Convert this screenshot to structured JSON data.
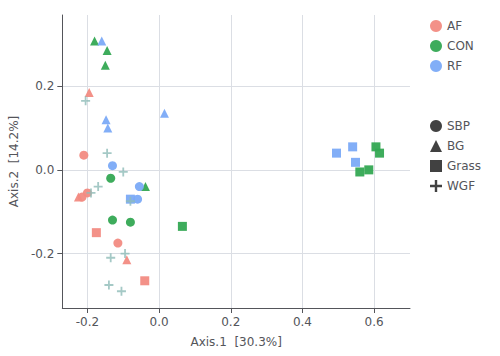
{
  "chart_data": {
    "type": "scatter",
    "xlabel": "Axis.1  [30.3%]",
    "ylabel": "Axis.2  [14.2%]",
    "xlim": [
      -0.27,
      0.7
    ],
    "ylim": [
      -0.33,
      0.37
    ],
    "xticks": [
      -0.2,
      {
        "value": 0.0,
        "label": "0.0"
      },
      0.2,
      0.4,
      0.6
    ],
    "yticks": [
      -0.2,
      {
        "value": 0.0,
        "label": "0.0"
      },
      0.2
    ],
    "grid": true,
    "series": [
      {
        "name": "AF",
        "color": "#F28B82",
        "x": [
          -0.195,
          -0.21,
          -0.2,
          -0.215,
          -0.225,
          -0.175,
          -0.04,
          -0.115,
          -0.09
        ],
        "y": [
          0.185,
          0.035,
          -0.055,
          -0.065,
          -0.065,
          -0.15,
          -0.265,
          -0.175,
          -0.215
        ],
        "shapes": [
          "BG",
          "SBP",
          "SBP",
          "SBP",
          "BG",
          "Grass",
          "Grass",
          "SBP",
          "BG"
        ]
      },
      {
        "name": "CON",
        "color": "#34A853",
        "x": [
          -0.18,
          -0.145,
          -0.15,
          -0.135,
          -0.13,
          -0.08,
          -0.038,
          0.065,
          0.56,
          0.605,
          0.615,
          0.585
        ],
        "y": [
          0.308,
          0.285,
          0.25,
          -0.02,
          -0.12,
          -0.125,
          -0.04,
          -0.135,
          -0.005,
          0.055,
          0.04,
          0.0
        ],
        "shapes": [
          "BG",
          "BG",
          "BG",
          "SBP",
          "SBP",
          "SBP",
          "BG",
          "Grass",
          "Grass",
          "Grass",
          "Grass",
          "Grass"
        ]
      },
      {
        "name": "RF",
        "color": "#7BAAF7",
        "x": [
          -0.16,
          -0.148,
          -0.143,
          0.015,
          -0.13,
          -0.055,
          -0.06,
          -0.08,
          0.495,
          0.54,
          0.548
        ],
        "y": [
          0.308,
          0.12,
          0.1,
          0.135,
          0.01,
          -0.04,
          -0.07,
          -0.07,
          0.04,
          0.055,
          0.018
        ],
        "shapes": [
          "BG",
          "BG",
          "BG",
          "BG",
          "SBP",
          "SBP",
          "SBP",
          "Grass",
          "Grass",
          "Grass",
          "Grass"
        ]
      }
    ],
    "shapes": [
      {
        "name": "SBP",
        "marker": "circle"
      },
      {
        "name": "BG",
        "marker": "triangle"
      },
      {
        "name": "Grass",
        "marker": "square"
      },
      {
        "name": "WGF",
        "marker": "plus",
        "color": "#8FBCB8",
        "x": [
          -0.205,
          -0.145,
          -0.17,
          -0.19,
          -0.1,
          -0.08,
          -0.095,
          -0.135,
          -0.14,
          -0.105
        ],
        "y": [
          0.165,
          0.04,
          -0.04,
          -0.055,
          -0.005,
          -0.075,
          -0.2,
          -0.21,
          -0.275,
          -0.29
        ]
      }
    ]
  }
}
